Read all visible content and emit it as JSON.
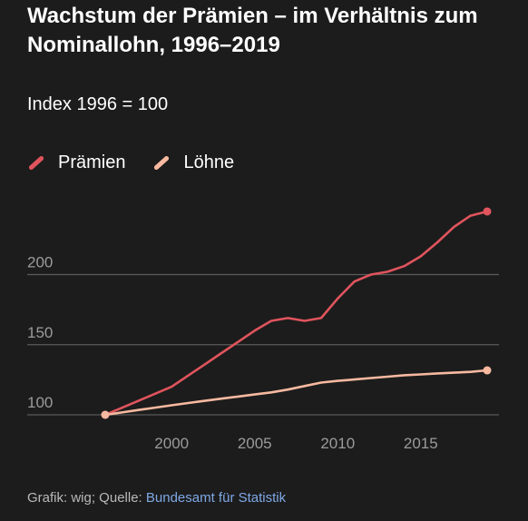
{
  "header": {
    "title": "Wachstum der Prämien – im Verhältnis zum Nominallohn, 1996–2019",
    "subtitle": "Index 1996 = 100"
  },
  "footer": {
    "prefix": "Grafik: wig; Quelle: ",
    "source_link": "Bundesamt für Statistik"
  },
  "colors": {
    "background": "#1c1c1c",
    "praemien": "#e0545d",
    "loehne": "#f7b9a0",
    "grid": "#5a5a5a",
    "tick_text": "#9b9b9b",
    "link": "#7fa8e6"
  },
  "chart_data": {
    "type": "line",
    "title": "Wachstum der Prämien – im Verhältnis zum Nominallohn, 1996–2019",
    "subtitle": "Index 1996 = 100",
    "xlabel": "",
    "ylabel": "",
    "xlim": [
      1996,
      2019
    ],
    "ylim": [
      100,
      250
    ],
    "xticks": [
      2000,
      2005,
      2010,
      2015
    ],
    "yticks": [
      100,
      150,
      200
    ],
    "grid": "horizontal",
    "legend_position": "top-left",
    "series": [
      {
        "name": "Prämien",
        "color": "#e0545d",
        "x": [
          1996,
          1997,
          1998,
          1999,
          2000,
          2001,
          2002,
          2003,
          2004,
          2005,
          2006,
          2007,
          2008,
          2009,
          2010,
          2011,
          2012,
          2013,
          2014,
          2015,
          2016,
          2017,
          2018,
          2019
        ],
        "y": [
          100,
          105,
          110,
          115,
          120,
          128,
          136,
          144,
          152,
          160,
          167,
          169,
          167,
          169,
          183,
          195,
          200,
          202,
          206,
          213,
          223,
          234,
          242,
          245
        ]
      },
      {
        "name": "Löhne",
        "color": "#f7b9a0",
        "x": [
          1996,
          1997,
          1998,
          1999,
          2000,
          2001,
          2002,
          2003,
          2004,
          2005,
          2006,
          2007,
          2008,
          2009,
          2010,
          2011,
          2012,
          2013,
          2014,
          2015,
          2016,
          2017,
          2018,
          2019
        ],
        "y": [
          100,
          101.7,
          103.4,
          105.1,
          106.8,
          108.4,
          110,
          111.5,
          113,
          114.5,
          116,
          118,
          120.5,
          123,
          124.2,
          125.2,
          126.2,
          127.2,
          128.2,
          128.8,
          129.5,
          130,
          130.6,
          131.7
        ]
      }
    ]
  }
}
